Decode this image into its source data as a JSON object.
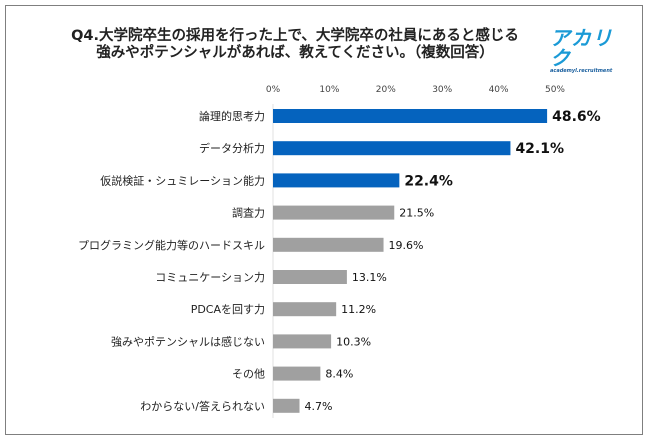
{
  "title_lines": [
    "Q4.大学院卒生の採用を行った上で、大学院卒の社員にあると感じる",
    "強みやポテンシャルがあれば、教えてください。（複数回答）"
  ],
  "logo": {
    "main": "アカリク",
    "sub": "academyl.recruitment"
  },
  "colors": {
    "highlight": "#0563BE",
    "normal": "#A0A0A0"
  },
  "chart_data": {
    "type": "bar",
    "orientation": "horizontal",
    "title": "Q4.大学院卒生の採用を行った上で、大学院卒の社員にあると感じる強みやポテンシャルがあれば、教えてください。（複数回答）",
    "categories": [
      "論理的思考力",
      "データ分析力",
      "仮説検証・シュミレーション能力",
      "調査力",
      "プログラミング能力等のハードスキル",
      "コミュニケーション力",
      "PDCAを回す力",
      "強みやポテンシャルは感じない",
      "その他",
      "わからない/答えられない"
    ],
    "values": [
      48.6,
      42.1,
      22.4,
      21.5,
      19.6,
      13.1,
      11.2,
      10.3,
      8.4,
      4.7
    ],
    "highlighted": [
      true,
      true,
      true,
      false,
      false,
      false,
      false,
      false,
      false,
      false
    ],
    "data_labels": [
      "48.6%",
      "42.1%",
      "22.4%",
      "21.5%",
      "19.6%",
      "13.1%",
      "11.2%",
      "10.3%",
      "8.4%",
      "4.7%"
    ],
    "xticks": [
      "0%",
      "10%",
      "20%",
      "30%",
      "40%",
      "50%"
    ],
    "xlim": [
      0,
      50
    ],
    "xaxis_position": "top",
    "grid": false,
    "legend": "none"
  }
}
